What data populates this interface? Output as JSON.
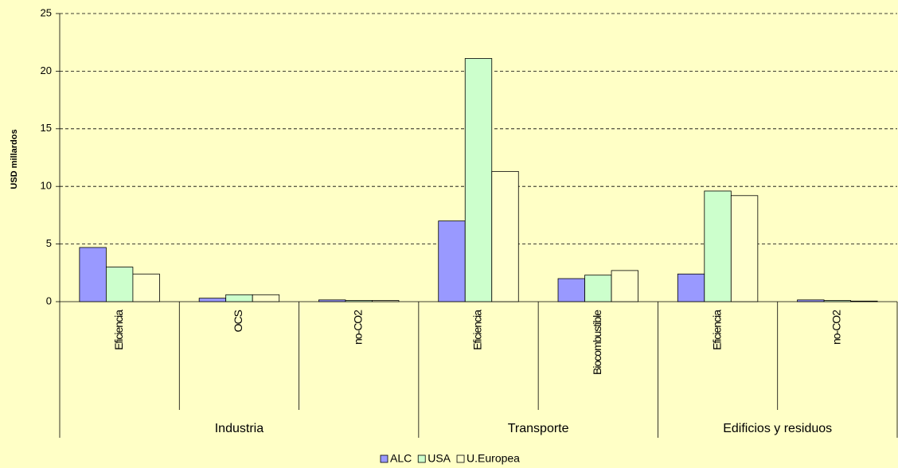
{
  "chart_data": {
    "type": "bar",
    "y_label": "USD millardos",
    "groups": [
      {
        "name": "Industria",
        "categories": [
          "Eficiencia",
          "OCS",
          "no-CO2"
        ]
      },
      {
        "name": "Transporte",
        "categories": [
          "Eficiencia",
          "Biocombustible"
        ]
      },
      {
        "name": "Edificios y residuos",
        "categories": [
          "Eficiencia",
          "no-CO2"
        ]
      }
    ],
    "series": [
      {
        "name": "ALC",
        "color": "#9999ff",
        "values": [
          4.7,
          0.3,
          0.15,
          7.0,
          2.0,
          2.4,
          0.15
        ]
      },
      {
        "name": "USA",
        "color": "#ccffcc",
        "values": [
          3.0,
          0.6,
          0.1,
          21.1,
          2.3,
          9.6,
          0.1
        ]
      },
      {
        "name": "U.Europea",
        "color": "#ffffcc",
        "values": [
          2.4,
          0.6,
          0.1,
          11.3,
          2.7,
          9.2,
          0.05
        ]
      }
    ],
    "ylim": [
      0,
      25
    ],
    "yticks": [
      0,
      5,
      10,
      15,
      20,
      25
    ],
    "grid": true
  }
}
